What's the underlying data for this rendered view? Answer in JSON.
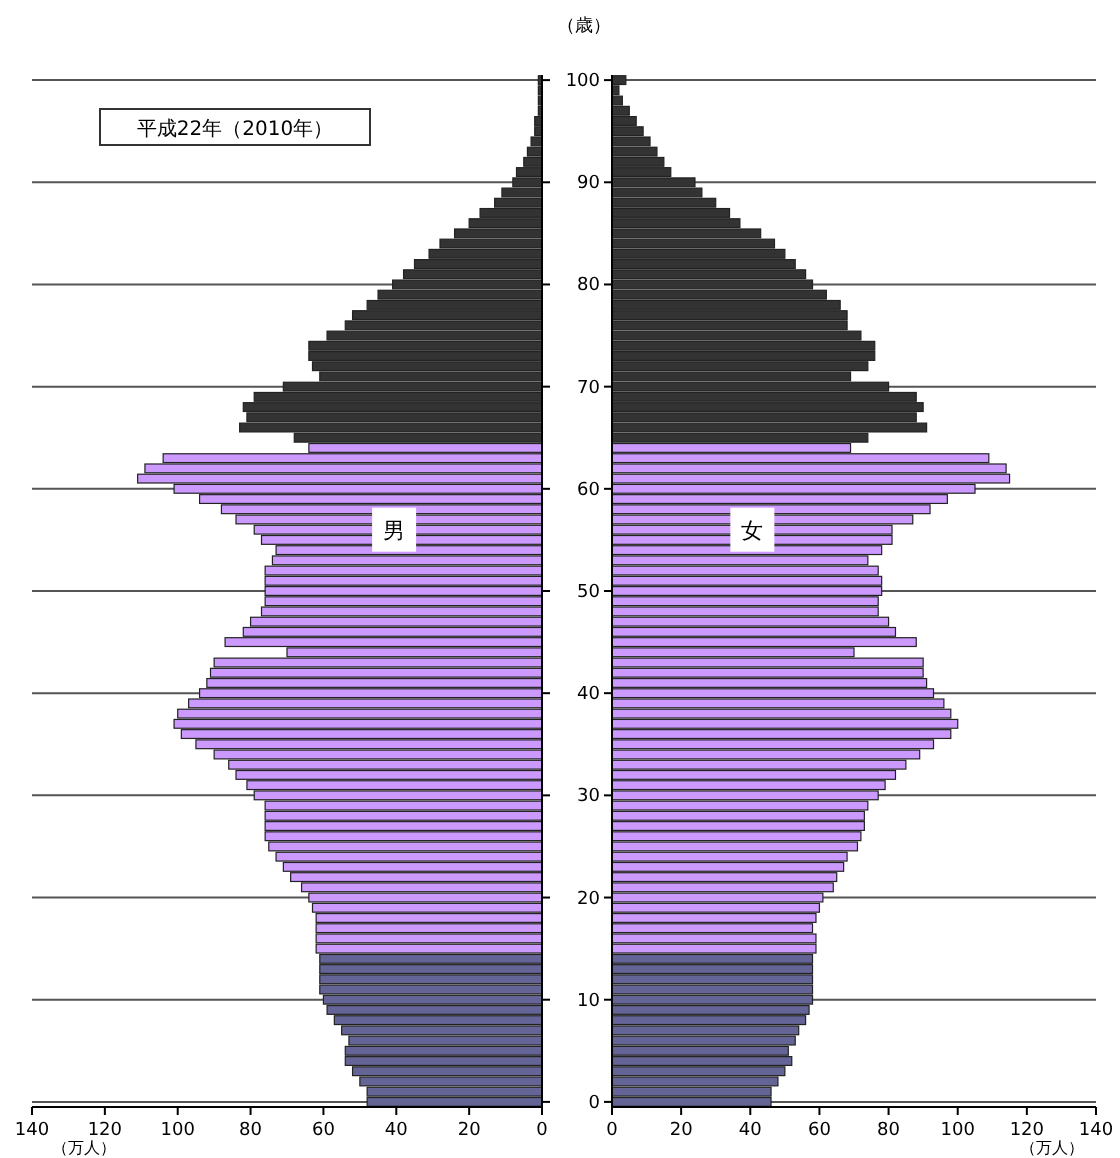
{
  "chart_data": [
    {
      "type": "bar",
      "orientation": "horizontal",
      "title": "平成22年（2010年）",
      "xlabel": "（万人）",
      "annotations": [
        "男"
      ],
      "grid": "y",
      "tick_labels": "x",
      "xlim": [
        140,
        0
      ],
      "xticks": [
        140,
        120,
        100,
        80,
        60,
        40,
        20,
        0
      ],
      "categories": [
        "100",
        null,
        null,
        null,
        null,
        null,
        null,
        null,
        null,
        null,
        "90",
        null,
        null,
        null,
        null,
        null,
        null,
        null,
        null,
        null,
        "80",
        null,
        null,
        null,
        null,
        null,
        null,
        null,
        null,
        null,
        "70",
        null,
        null,
        null,
        null,
        null,
        null,
        null,
        null,
        null,
        "60",
        null,
        null,
        null,
        null,
        null,
        null,
        null,
        null,
        null,
        "50",
        null,
        null,
        null,
        null,
        null,
        null,
        null,
        null,
        null,
        "40",
        null,
        null,
        null,
        null,
        null,
        null,
        null,
        null,
        null,
        "30",
        null,
        null,
        null,
        null,
        null,
        null,
        null,
        null,
        null,
        "20",
        null,
        null,
        null,
        null,
        null,
        null,
        null,
        null,
        null,
        "10",
        null,
        null,
        null,
        null,
        null,
        null,
        null,
        null,
        null,
        "0"
      ],
      "series": [
        {
          "values": [
            1,
            1,
            1,
            1,
            2,
            2,
            3,
            4,
            5,
            7,
            8,
            11,
            13,
            17,
            20,
            24,
            28,
            31,
            35,
            38,
            41,
            45,
            48,
            52,
            54,
            59,
            64,
            64,
            63,
            61,
            71,
            79,
            82,
            81,
            83,
            68,
            64,
            104,
            109,
            111,
            101,
            94,
            88,
            84,
            79,
            77,
            73,
            74,
            76,
            76,
            76,
            76,
            77,
            80,
            82,
            87,
            70,
            90,
            91,
            92,
            94,
            97,
            100,
            101,
            99,
            95,
            90,
            86,
            84,
            81,
            79,
            76,
            76,
            76,
            76,
            75,
            73,
            71,
            69,
            66,
            64,
            63,
            62,
            62,
            62,
            62,
            61,
            61,
            61,
            61,
            60,
            59,
            57,
            55,
            53,
            54,
            54,
            52,
            50,
            48,
            48
          ],
          "colors": [
            "#333333",
            "#333333",
            "#333333",
            "#333333",
            "#333333",
            "#333333",
            "#333333",
            "#333333",
            "#333333",
            "#333333",
            "#333333",
            "#333333",
            "#333333",
            "#333333",
            "#333333",
            "#333333",
            "#333333",
            "#333333",
            "#333333",
            "#333333",
            "#333333",
            "#333333",
            "#333333",
            "#333333",
            "#333333",
            "#333333",
            "#333333",
            "#333333",
            "#333333",
            "#333333",
            "#333333",
            "#333333",
            "#333333",
            "#333333",
            "#333333",
            "#333333",
            "#cc99ff",
            "#cc99ff",
            "#cc99ff",
            "#cc99ff",
            "#cc99ff",
            "#cc99ff",
            "#cc99ff",
            "#cc99ff",
            "#cc99ff",
            "#cc99ff",
            "#cc99ff",
            "#cc99ff",
            "#cc99ff",
            "#cc99ff",
            "#cc99ff",
            "#cc99ff",
            "#cc99ff",
            "#cc99ff",
            "#cc99ff",
            "#cc99ff",
            "#cc99ff",
            "#cc99ff",
            "#cc99ff",
            "#cc99ff",
            "#cc99ff",
            "#cc99ff",
            "#cc99ff",
            "#cc99ff",
            "#cc99ff",
            "#cc99ff",
            "#cc99ff",
            "#cc99ff",
            "#cc99ff",
            "#cc99ff",
            "#cc99ff",
            "#cc99ff",
            "#cc99ff",
            "#cc99ff",
            "#cc99ff",
            "#cc99ff",
            "#cc99ff",
            "#cc99ff",
            "#cc99ff",
            "#cc99ff",
            "#cc99ff",
            "#cc99ff",
            "#cc99ff",
            "#cc99ff",
            "#cc99ff",
            "#cc99ff",
            "#646496",
            "#646496",
            "#646496",
            "#646496",
            "#646496",
            "#646496",
            "#646496",
            "#646496",
            "#646496",
            "#646496",
            "#646496",
            "#646496",
            "#646496",
            "#646496",
            "#646496"
          ]
        }
      ]
    },
    {
      "type": "bar",
      "orientation": "horizontal",
      "ylabel": "（歳）",
      "xlabel": "（万人）",
      "annotations": [
        "女"
      ],
      "grid": "y",
      "xlim": [
        0,
        140
      ],
      "xticks": [
        0,
        20,
        40,
        60,
        80,
        100,
        120,
        140
      ],
      "categories": [
        "100",
        null,
        null,
        null,
        null,
        null,
        null,
        null,
        null,
        null,
        "90",
        null,
        null,
        null,
        null,
        null,
        null,
        null,
        null,
        null,
        "80",
        null,
        null,
        null,
        null,
        null,
        null,
        null,
        null,
        null,
        "70",
        null,
        null,
        null,
        null,
        null,
        null,
        null,
        null,
        null,
        "60",
        null,
        null,
        null,
        null,
        null,
        null,
        null,
        null,
        null,
        "50",
        null,
        null,
        null,
        null,
        null,
        null,
        null,
        null,
        null,
        "40",
        null,
        null,
        null,
        null,
        null,
        null,
        null,
        null,
        null,
        "30",
        null,
        null,
        null,
        null,
        null,
        null,
        null,
        null,
        null,
        "20",
        null,
        null,
        null,
        null,
        null,
        null,
        null,
        null,
        null,
        "10",
        null,
        null,
        null,
        null,
        null,
        null,
        null,
        null,
        null,
        "0"
      ],
      "series": [
        {
          "values": [
            4,
            2,
            3,
            5,
            7,
            9,
            11,
            13,
            15,
            17,
            24,
            26,
            30,
            34,
            37,
            43,
            47,
            50,
            53,
            56,
            58,
            62,
            66,
            68,
            68,
            72,
            76,
            76,
            74,
            69,
            80,
            88,
            90,
            88,
            91,
            74,
            69,
            109,
            114,
            115,
            105,
            97,
            92,
            87,
            81,
            81,
            78,
            74,
            77,
            78,
            78,
            77,
            77,
            80,
            82,
            88,
            70,
            90,
            90,
            91,
            93,
            96,
            98,
            100,
            98,
            93,
            89,
            85,
            82,
            79,
            77,
            74,
            73,
            73,
            72,
            71,
            68,
            67,
            65,
            64,
            61,
            60,
            59,
            58,
            59,
            59,
            58,
            58,
            58,
            58,
            58,
            57,
            56,
            54,
            53,
            51,
            52,
            50,
            48,
            46,
            46
          ],
          "colors": [
            "#333333",
            "#333333",
            "#333333",
            "#333333",
            "#333333",
            "#333333",
            "#333333",
            "#333333",
            "#333333",
            "#333333",
            "#333333",
            "#333333",
            "#333333",
            "#333333",
            "#333333",
            "#333333",
            "#333333",
            "#333333",
            "#333333",
            "#333333",
            "#333333",
            "#333333",
            "#333333",
            "#333333",
            "#333333",
            "#333333",
            "#333333",
            "#333333",
            "#333333",
            "#333333",
            "#333333",
            "#333333",
            "#333333",
            "#333333",
            "#333333",
            "#333333",
            "#cc99ff",
            "#cc99ff",
            "#cc99ff",
            "#cc99ff",
            "#cc99ff",
            "#cc99ff",
            "#cc99ff",
            "#cc99ff",
            "#cc99ff",
            "#cc99ff",
            "#cc99ff",
            "#cc99ff",
            "#cc99ff",
            "#cc99ff",
            "#cc99ff",
            "#cc99ff",
            "#cc99ff",
            "#cc99ff",
            "#cc99ff",
            "#cc99ff",
            "#cc99ff",
            "#cc99ff",
            "#cc99ff",
            "#cc99ff",
            "#cc99ff",
            "#cc99ff",
            "#cc99ff",
            "#cc99ff",
            "#cc99ff",
            "#cc99ff",
            "#cc99ff",
            "#cc99ff",
            "#cc99ff",
            "#cc99ff",
            "#cc99ff",
            "#cc99ff",
            "#cc99ff",
            "#cc99ff",
            "#cc99ff",
            "#cc99ff",
            "#cc99ff",
            "#cc99ff",
            "#cc99ff",
            "#cc99ff",
            "#cc99ff",
            "#cc99ff",
            "#cc99ff",
            "#cc99ff",
            "#cc99ff",
            "#cc99ff",
            "#646496",
            "#646496",
            "#646496",
            "#646496",
            "#646496",
            "#646496",
            "#646496",
            "#646496",
            "#646496",
            "#646496",
            "#646496",
            "#646496",
            "#646496",
            "#646496",
            "#646496"
          ]
        }
      ]
    }
  ]
}
